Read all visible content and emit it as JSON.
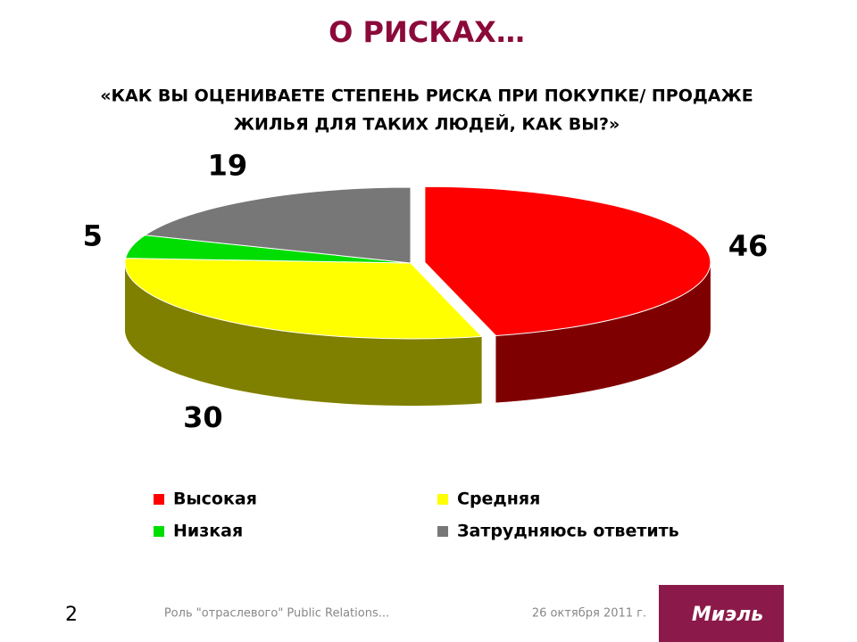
{
  "chart_data": {
    "type": "pie",
    "title": "О РИСКАХ…",
    "subtitle": [
      "«КАК ВЫ ОЦЕНИВАЕТЕ СТЕПЕНЬ РИСКА ПРИ ПОКУПКЕ/ ПРОДАЖЕ",
      "ЖИЛЬЯ ДЛЯ ТАКИХ ЛЮДЕЙ, КАК ВЫ?»"
    ],
    "categories": [
      "Высокая",
      "Средняя",
      "Низкая",
      "Затрудняюсь ответить"
    ],
    "values": [
      46,
      30,
      5,
      19
    ],
    "colors": [
      "#ff0000",
      "#ffff00",
      "#00dd00",
      "#777777"
    ],
    "legend": "bottom"
  },
  "footer": {
    "page": "2",
    "text": "Роль \"отраслевого\" Public Relations...",
    "date": "26 октября 2011 г.",
    "logo": "Миэль"
  }
}
